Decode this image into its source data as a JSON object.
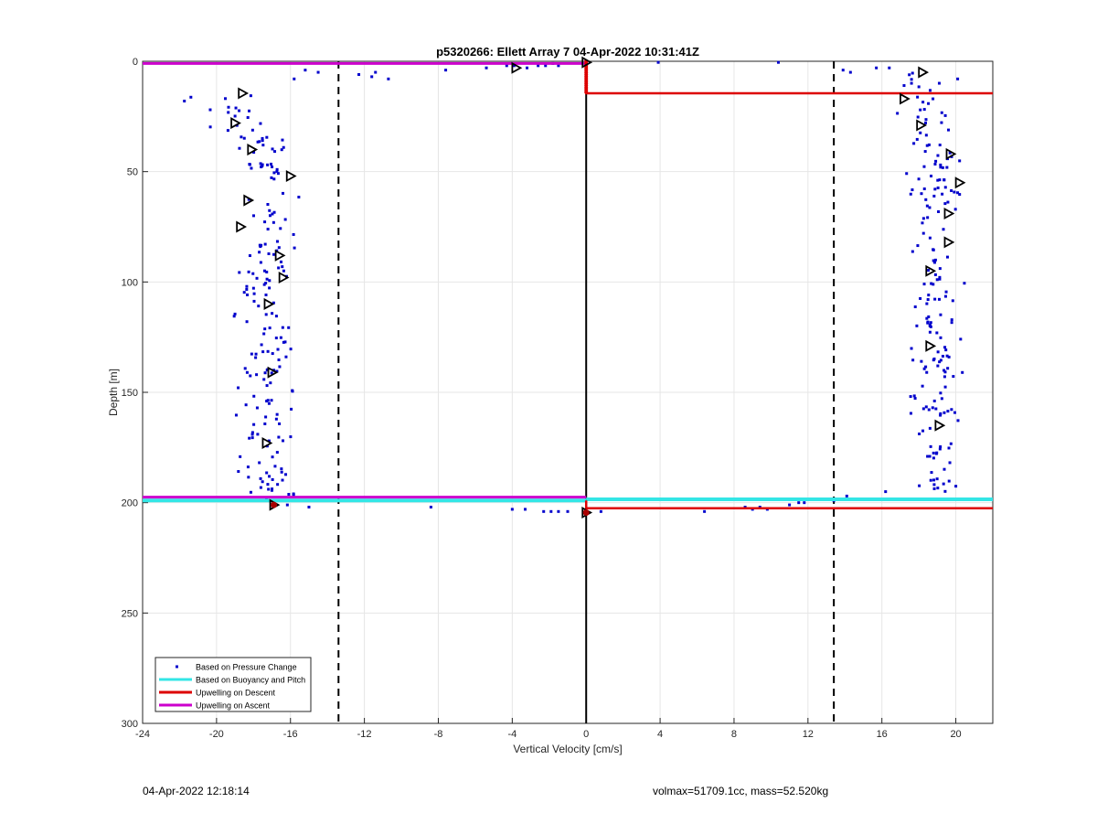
{
  "chart_data": {
    "type": "scatter",
    "title": "p5320266: Ellett Array 7 04-Apr-2022 10:31:41Z",
    "xlabel": "Vertical Velocity [cm/s]",
    "ylabel": "Depth [m]",
    "xlim": [
      -24,
      22
    ],
    "ylim": [
      0,
      300
    ],
    "y_reversed": true,
    "grid": true,
    "x_ticks": [
      -24,
      -20,
      -16,
      -12,
      -8,
      -4,
      0,
      4,
      8,
      12,
      16,
      20
    ],
    "y_ticks": [
      0,
      50,
      100,
      150,
      200,
      250,
      300
    ],
    "legend_position": "bottom-left",
    "legend": [
      {
        "label": "Based on Pressure Change",
        "color": "#0000cc",
        "style": "dot"
      },
      {
        "label": "Based on Buoyancy and Pitch",
        "color": "#33e6e6",
        "style": "line"
      },
      {
        "label": "Upwelling on Descent",
        "color": "#dd0000",
        "style": "line"
      },
      {
        "label": "Upwelling on Ascent",
        "color": "#cc00cc",
        "style": "line"
      }
    ],
    "dashed_thresholds": [
      -13.4,
      13.4
    ],
    "zero_line": 0,
    "lines": {
      "buoyancy_pitch": [
        {
          "x": [
            -24,
            0
          ],
          "y": [
            199,
            199
          ]
        },
        {
          "x": [
            0,
            22
          ],
          "y": [
            198.5,
            198.5
          ]
        }
      ],
      "upwelling_descent": [
        {
          "x": [
            0,
            0,
            22
          ],
          "y": [
            0,
            14.5,
            14.5
          ]
        },
        {
          "x": [
            0,
            0,
            22
          ],
          "y": [
            199,
            202.5,
            202.5
          ]
        }
      ],
      "upwelling_ascent": [
        {
          "x": [
            -24,
            0
          ],
          "y": [
            1,
            1
          ]
        },
        {
          "x": [
            -24,
            0
          ],
          "y": [
            197.5,
            197.5
          ]
        }
      ]
    },
    "triangle_markers": {
      "descent": [
        [
          18.2,
          5
        ],
        [
          17.2,
          17
        ],
        [
          18.1,
          29
        ],
        [
          19.7,
          42
        ],
        [
          20.2,
          55
        ],
        [
          19.6,
          69
        ],
        [
          19.6,
          82
        ],
        [
          18.6,
          95
        ],
        [
          18.6,
          129
        ],
        [
          19.1,
          165
        ],
        [
          0,
          0.5
        ],
        [
          0,
          204.5
        ]
      ],
      "ascent": [
        [
          -3.8,
          3
        ],
        [
          -18.6,
          14.5
        ],
        [
          -19,
          28
        ],
        [
          -18.1,
          40
        ],
        [
          -16,
          52
        ],
        [
          -18.3,
          63
        ],
        [
          -18.7,
          75
        ],
        [
          -16.6,
          88
        ],
        [
          -16.4,
          98
        ],
        [
          -17.2,
          110
        ],
        [
          -17,
          141
        ],
        [
          -17.3,
          173
        ],
        [
          -16.9,
          201
        ]
      ]
    },
    "scatter_clusters": [
      {
        "side": "descent",
        "y_range": [
          5,
          197
        ],
        "x_range": [
          16.2,
          21.2
        ],
        "count": 190
      },
      {
        "side": "ascent",
        "y_range": [
          14,
          202
        ],
        "x_range": [
          -23.2,
          -14.8
        ],
        "count": 200
      },
      {
        "side": "near-surface",
        "points": [
          [
            -15.2,
            4
          ],
          [
            -14.5,
            5
          ],
          [
            -15.8,
            8
          ],
          [
            -12.3,
            6
          ],
          [
            -11.6,
            7
          ],
          [
            -10.7,
            8
          ],
          [
            -11.4,
            5
          ],
          [
            -7.6,
            4
          ],
          [
            -5.4,
            3
          ],
          [
            -4.3,
            2
          ],
          [
            -3.9,
            2
          ],
          [
            -3.2,
            3
          ],
          [
            -2.6,
            2
          ],
          [
            -2.2,
            2
          ],
          [
            -1.8,
            1
          ],
          [
            -1.5,
            2
          ],
          [
            3.9,
            0.5
          ],
          [
            10.4,
            0.5
          ],
          [
            13.9,
            4
          ],
          [
            14.3,
            5
          ],
          [
            15.7,
            3
          ],
          [
            16.4,
            3
          ],
          [
            17.2,
            11
          ],
          [
            20.1,
            8
          ]
        ]
      },
      {
        "side": "near-bottom",
        "points": [
          [
            -15,
            202
          ],
          [
            -8.4,
            202
          ],
          [
            -4,
            203
          ],
          [
            -3.3,
            203
          ],
          [
            -2.3,
            204
          ],
          [
            -1.9,
            204
          ],
          [
            -1.5,
            204
          ],
          [
            -1.0,
            204
          ],
          [
            0.8,
            204
          ],
          [
            6.4,
            204
          ],
          [
            8.6,
            202
          ],
          [
            9,
            203
          ],
          [
            9.4,
            202
          ],
          [
            9.8,
            203
          ],
          [
            11,
            201
          ],
          [
            11.5,
            200
          ],
          [
            11.8,
            200
          ],
          [
            13.4,
            199
          ],
          [
            14.1,
            197
          ],
          [
            16.2,
            195
          ]
        ]
      }
    ]
  },
  "footer": {
    "timestamp": "04-Apr-2022 12:18:14",
    "params": "volmax=51709.1cc, mass=52.520kg"
  }
}
